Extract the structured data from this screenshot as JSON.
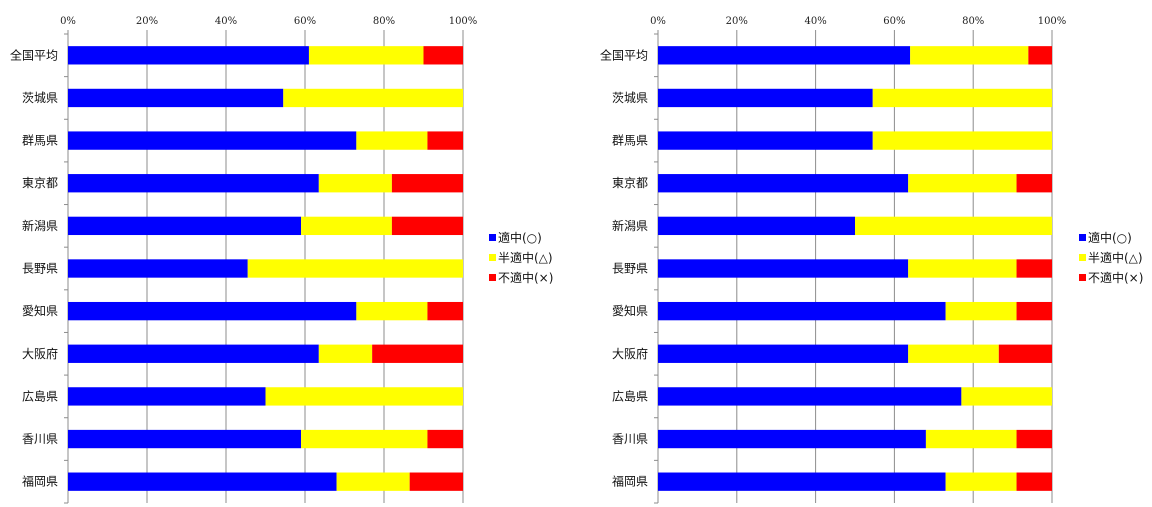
{
  "colors": {
    "good": "#0000ff",
    "half": "#ffff00",
    "bad": "#ff0000",
    "grid": "#8c8c8c"
  },
  "chart_data": [
    {
      "type": "bar",
      "orientation": "horizontal",
      "stacked": "percent",
      "xlim": [
        0,
        100
      ],
      "xticks": [
        "0%",
        "20%",
        "40%",
        "60%",
        "80%",
        "100%"
      ],
      "grid": true,
      "legend_position": "right",
      "categories": [
        "全国平均",
        "茨城県",
        "群馬県",
        "東京都",
        "新潟県",
        "長野県",
        "愛知県",
        "大阪府",
        "広島県",
        "香川県",
        "福岡県"
      ],
      "series": [
        {
          "name": "適中(○)",
          "values": [
            61,
            54.5,
            73,
            63.5,
            59,
            45.5,
            73,
            63.5,
            50,
            59,
            68
          ]
        },
        {
          "name": "半適中(△)",
          "values": [
            29,
            45.5,
            18,
            18.5,
            23,
            54.5,
            18,
            13.5,
            50,
            32,
            18.5
          ]
        },
        {
          "name": "不適中(×)",
          "values": [
            10,
            0,
            9,
            18,
            18,
            0,
            9,
            23,
            0,
            9,
            13.5
          ]
        }
      ]
    },
    {
      "type": "bar",
      "orientation": "horizontal",
      "stacked": "percent",
      "xlim": [
        0,
        100
      ],
      "xticks": [
        "0%",
        "20%",
        "40%",
        "60%",
        "80%",
        "100%"
      ],
      "grid": true,
      "legend_position": "right",
      "categories": [
        "全国平均",
        "茨城県",
        "群馬県",
        "東京都",
        "新潟県",
        "長野県",
        "愛知県",
        "大阪府",
        "広島県",
        "香川県",
        "福岡県"
      ],
      "series": [
        {
          "name": "適中(○)",
          "values": [
            64,
            54.5,
            54.5,
            63.5,
            50,
            63.5,
            73,
            63.5,
            77,
            68,
            73
          ]
        },
        {
          "name": "半適中(△)",
          "values": [
            30,
            45.5,
            45.5,
            27.5,
            50,
            27.5,
            18,
            23,
            23,
            23,
            18
          ]
        },
        {
          "name": "不適中(×)",
          "values": [
            6,
            0,
            0,
            9,
            0,
            9,
            9,
            13.5,
            0,
            9,
            9
          ]
        }
      ]
    }
  ]
}
